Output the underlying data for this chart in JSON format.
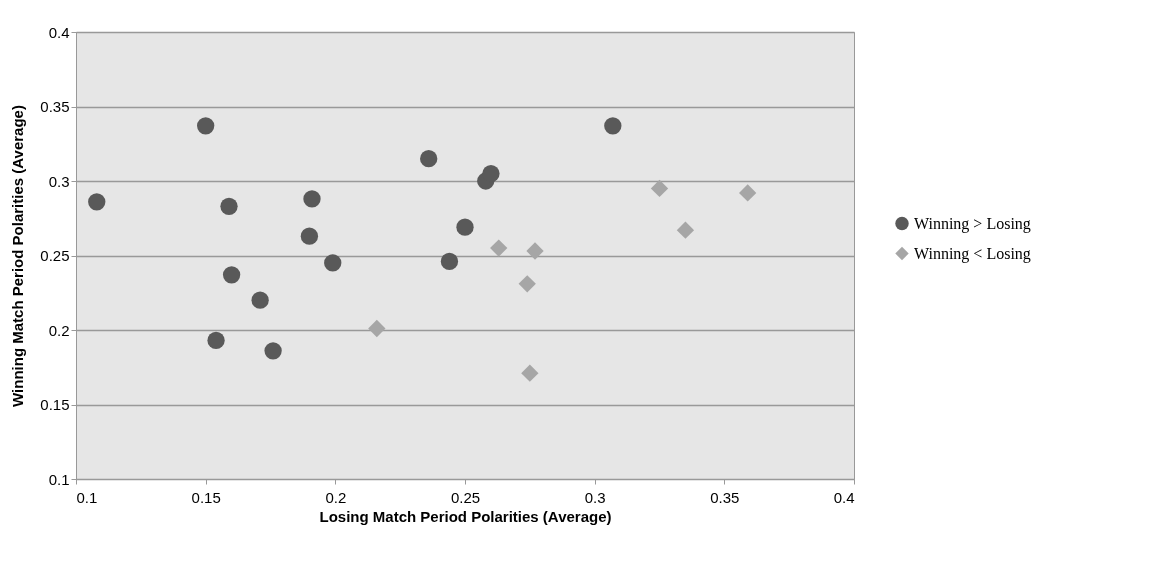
{
  "chart_data": {
    "type": "scatter",
    "xlabel": "Losing Match Period Polarities (Average)",
    "ylabel": "Winning Match Period Polarities (Average)",
    "xlim": [
      0.1,
      0.4
    ],
    "xticks": [
      0.1,
      0.15,
      0.2,
      0.25,
      0.3,
      0.35,
      0.4
    ],
    "ylim": [
      0.1,
      0.4
    ],
    "yticks": [
      0.1,
      0.15,
      0.2,
      0.25,
      0.3,
      0.35,
      0.4
    ],
    "grid": "y",
    "legend": "right",
    "series": [
      {
        "name": "Winning > Losing",
        "color": "#595959",
        "marker": "circle",
        "x": [
          0.108,
          0.15,
          0.159,
          0.16,
          0.154,
          0.171,
          0.176,
          0.191,
          0.19,
          0.199,
          0.236,
          0.244,
          0.25,
          0.258,
          0.26,
          0.307
        ],
        "values": [
          0.286,
          0.337,
          0.283,
          0.237,
          0.193,
          0.22,
          0.186,
          0.288,
          0.263,
          0.245,
          0.315,
          0.246,
          0.269,
          0.3,
          0.305,
          0.337
        ]
      },
      {
        "name": "Winning < Losing",
        "color": "#a6a6a6",
        "marker": "diamond",
        "x": [
          0.216,
          0.263,
          0.277,
          0.274,
          0.275,
          0.325,
          0.335,
          0.359
        ],
        "values": [
          0.201,
          0.255,
          0.253,
          0.231,
          0.171,
          0.295,
          0.267,
          0.292
        ]
      }
    ]
  }
}
